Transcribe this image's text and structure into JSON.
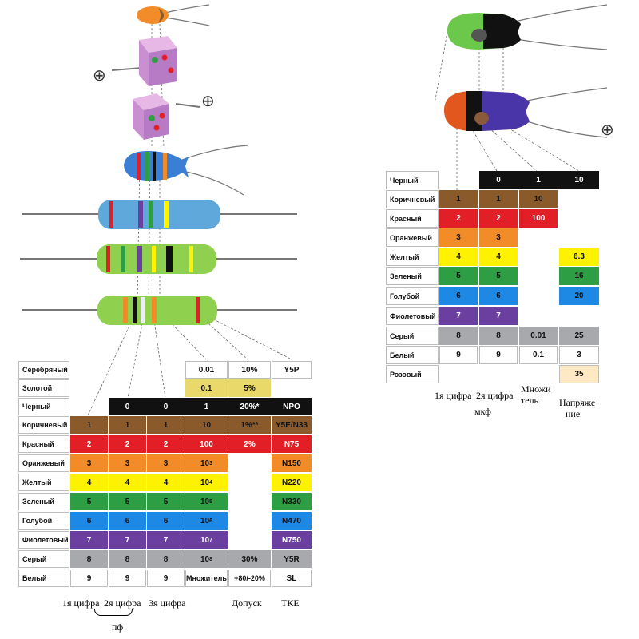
{
  "resistor_table": {
    "rows": [
      {
        "name": "Серебряный",
        "color": "#c0c0c0"
      },
      {
        "name": "Золотой",
        "color": "#d4af37"
      },
      {
        "name": "Черный",
        "color": "#111111"
      },
      {
        "name": "Коричневый",
        "color": "#8b5a2b"
      },
      {
        "name": "Красный",
        "color": "#e21f26"
      },
      {
        "name": "Оранжевый",
        "color": "#f28c28"
      },
      {
        "name": "Желтый",
        "color": "#fff200"
      },
      {
        "name": "Зеленый",
        "color": "#2e9e44"
      },
      {
        "name": "Голубой",
        "color": "#1e88e5"
      },
      {
        "name": "Фиолетовый",
        "color": "#6a3fa0"
      },
      {
        "name": "Серый",
        "color": "#a7a9ac"
      },
      {
        "name": "Белый",
        "color": "#ffffff"
      }
    ],
    "digits": [
      "0",
      "1",
      "2",
      "3",
      "4",
      "5",
      "6",
      "7",
      "8",
      "9"
    ],
    "multiplier": {
      "silver": "0.01",
      "gold": "0.1",
      "black": "1",
      "brown": "10",
      "red": "100",
      "exp_base": "10",
      "exponents": [
        "3",
        "4",
        "5",
        "6",
        "7",
        "8"
      ],
      "footer": "Множитель"
    },
    "tolerance": {
      "silver": "10%",
      "gold": "5%",
      "black": "20%*",
      "brown": "1%**",
      "red": "2%",
      "gray": "30%",
      "white": "+80/-20%"
    },
    "tke": [
      "Y5P",
      "NPO",
      "Y5E/N33",
      "N75",
      "N150",
      "N220",
      "N330",
      "N470",
      "N750",
      "Y5R",
      "SL"
    ],
    "footer_labels": {
      "d1": "1я цифра",
      "d2": "2я цифра",
      "d3": "3я цифра",
      "tolerance": "Допуск",
      "tke": "ТКЕ",
      "unit": "пф"
    }
  },
  "capacitor_table": {
    "rows": [
      {
        "name": "Черный",
        "color": "#111111"
      },
      {
        "name": "Коричневый",
        "color": "#8b5a2b"
      },
      {
        "name": "Красный",
        "color": "#e21f26"
      },
      {
        "name": "Оранжевый",
        "color": "#f28c28"
      },
      {
        "name": "Желтый",
        "color": "#fff200"
      },
      {
        "name": "Зеленый",
        "color": "#2e9e44"
      },
      {
        "name": "Голубой",
        "color": "#1e88e5"
      },
      {
        "name": "Фиолетовый",
        "color": "#6a3fa0"
      },
      {
        "name": "Серый",
        "color": "#a7a9ac"
      },
      {
        "name": "Белый",
        "color": "#ffffff"
      },
      {
        "name": "Розовый",
        "color": "#fde9c4"
      }
    ],
    "digits": [
      "0",
      "1",
      "2",
      "3",
      "4",
      "5",
      "6",
      "7",
      "8",
      "9"
    ],
    "multiplier": [
      "1",
      "10",
      "100",
      "0.01",
      "0.1"
    ],
    "voltage": [
      "10",
      "6.3",
      "16",
      "20",
      "25",
      "3",
      "35"
    ],
    "footer_labels": {
      "d1": "1я цифра",
      "d2": "2я цифра",
      "unit": "мкф",
      "mult_line1": "Множи",
      "mult_line2": "тель",
      "volt_line1": "Напряже",
      "volt_line2": "ние"
    }
  },
  "symbols": {
    "plus": "⊕"
  }
}
